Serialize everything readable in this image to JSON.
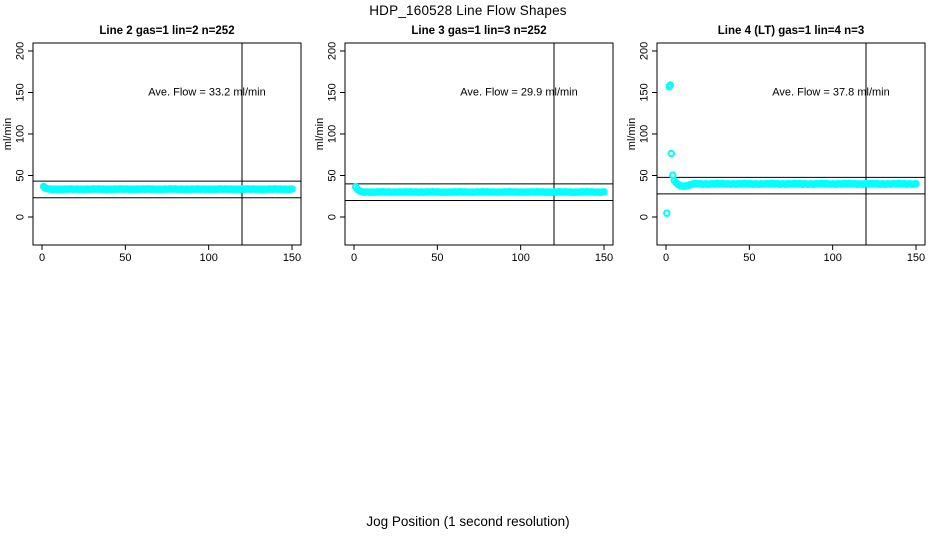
{
  "figure": {
    "title": "HDP_160528  Line Flow Shapes",
    "xlabel": "Jog Position (1 second resolution)",
    "background": "#ffffff"
  },
  "chart_data": {
    "type": "scatter",
    "title": "HDP_160528  Line Flow Shapes",
    "xlabel": "Jog Position (1 second resolution)",
    "ylabel": "ml/min",
    "xlim": [
      -5.4,
      155.4
    ],
    "ylim": [
      -33.7,
      209.6
    ],
    "x_ticks": [
      0,
      50,
      100,
      150
    ],
    "y_ticks": [
      0,
      50,
      100,
      150,
      200
    ],
    "grid": false,
    "legend": "none",
    "point_style": "open-circle",
    "point_color": "#00ffff",
    "axis_color": "#000000",
    "panels": [
      {
        "title": "Line 2 gas=1 lin=2 n=252",
        "n": 252,
        "ave_flow_ml_min": 33.2,
        "annotation": "Ave. Flow =  33.2  ml/min",
        "annotation_xy": [
          99,
          151
        ],
        "hlines": [
          43.2,
          23.2
        ],
        "vline": 120,
        "head_points": [
          [
            1,
            36.8
          ],
          [
            1.5,
            35.6
          ],
          [
            2,
            34.8
          ],
          [
            3,
            34.2
          ]
        ],
        "steady": {
          "from": 4,
          "to": 150,
          "step": 1,
          "value": 33.6,
          "jitter": 0.25
        }
      },
      {
        "title": "Line 3 gas=1 lin=3 n=252",
        "n": 252,
        "ave_flow_ml_min": 29.9,
        "annotation": "Ave. Flow =  29.9  ml/min",
        "annotation_xy": [
          99,
          151
        ],
        "hlines": [
          39.9,
          19.9
        ],
        "vline": 120,
        "head_points": [
          [
            1,
            36.3
          ],
          [
            2,
            33.5
          ],
          [
            3,
            31.8
          ],
          [
            4,
            30.8
          ],
          [
            5,
            30.4
          ]
        ],
        "steady": {
          "from": 6,
          "to": 150,
          "step": 1,
          "value": 30.1,
          "jitter": 0.25
        }
      },
      {
        "title": "Line 4 (LT) gas=1 lin=4 n=3",
        "n": 3,
        "ave_flow_ml_min": 37.8,
        "annotation": "Ave. Flow =  37.8  ml/min",
        "annotation_xy": [
          99,
          151
        ],
        "hlines": [
          47.8,
          27.8
        ],
        "vline": 120,
        "head_points": [
          [
            0.5,
            4.6
          ],
          [
            2,
            157
          ],
          [
            2.6,
            159
          ],
          [
            3.2,
            76.5
          ],
          [
            4,
            50.5
          ],
          [
            5,
            44
          ],
          [
            6,
            41.5
          ],
          [
            7,
            39.5
          ],
          [
            8,
            38.3
          ],
          [
            9,
            37.5
          ],
          [
            10,
            37.2
          ],
          [
            11,
            37.2
          ],
          [
            12,
            37.5
          ],
          [
            13,
            38
          ],
          [
            14,
            38.6
          ],
          [
            15,
            39.2
          ],
          [
            16,
            39.6
          ]
        ],
        "steady": {
          "from": 17,
          "to": 150,
          "step": 1,
          "value": 39.9,
          "jitter": 0.55
        }
      }
    ]
  }
}
